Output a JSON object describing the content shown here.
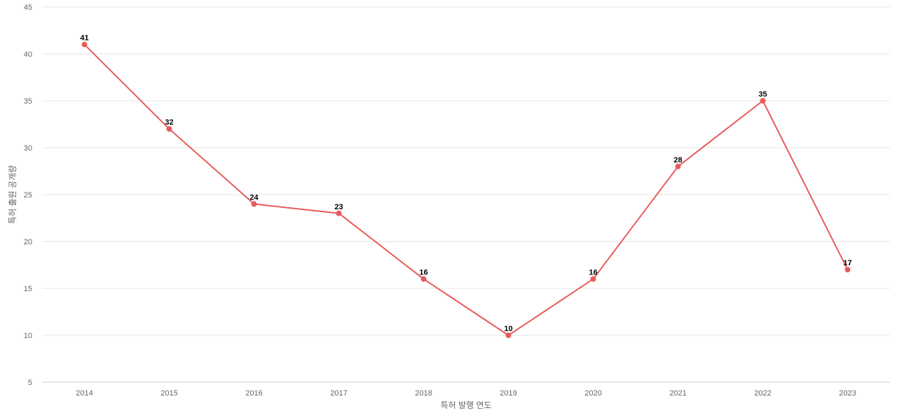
{
  "chart_data": {
    "type": "line",
    "title": "",
    "xlabel": "특허 발행 연도",
    "ylabel": "특허 출원 공개량",
    "categories": [
      "2014",
      "2015",
      "2016",
      "2017",
      "2018",
      "2019",
      "2020",
      "2021",
      "2022",
      "2023"
    ],
    "series": [
      {
        "values": [
          41,
          32,
          24,
          23,
          16,
          10,
          16,
          28,
          35,
          17
        ],
        "color": "#e85c5c"
      }
    ],
    "ylim": [
      5,
      45
    ],
    "yticks": [
      5,
      10,
      15,
      20,
      25,
      30,
      35,
      40,
      45
    ],
    "grid": true,
    "legend": "none",
    "data_labels": true
  }
}
